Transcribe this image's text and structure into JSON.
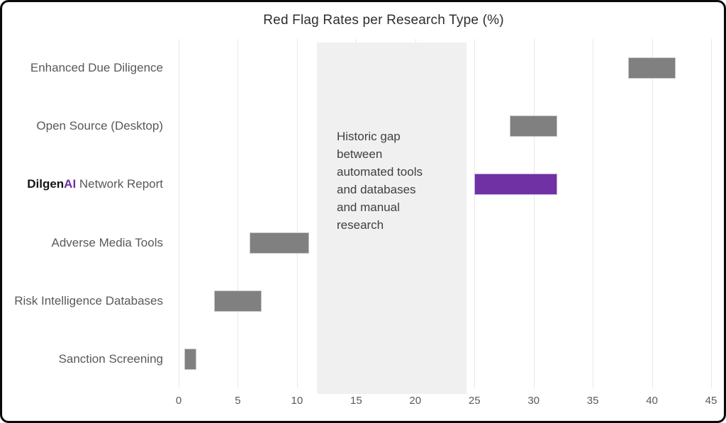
{
  "chart_data": {
    "type": "bar",
    "subtype": "horizontal-range-bars",
    "title": "Red Flag Rates per Research Type (%)",
    "xlabel": "",
    "ylabel": "",
    "xlim": [
      0,
      45
    ],
    "x_ticks": [
      0,
      5,
      10,
      15,
      20,
      25,
      30,
      35,
      40,
      45
    ],
    "grid": "vertical",
    "legend": "none",
    "rows": [
      {
        "label": "Enhanced Due Diligence",
        "start": 38,
        "end": 42,
        "highlight": false
      },
      {
        "label": "Open Source (Desktop)",
        "start": 28,
        "end": 32,
        "highlight": false
      },
      {
        "label": "DilgenAI Network Report",
        "start": 25,
        "end": 32,
        "highlight": true,
        "label_parts": [
          {
            "text": "Dilgen",
            "style": "brand-black"
          },
          {
            "text": "AI",
            "style": "brand-purple"
          },
          {
            "text": " Network Report",
            "style": "plain"
          }
        ]
      },
      {
        "label": "Adverse Media Tools",
        "start": 6,
        "end": 11,
        "highlight": false
      },
      {
        "label": "Risk Intelligence Databases",
        "start": 3,
        "end": 7,
        "highlight": false
      },
      {
        "label": "Sanction Screening",
        "start": 0.5,
        "end": 1.5,
        "highlight": false
      }
    ],
    "annotation": {
      "band_x0": 11.7,
      "band_x1": 24.3,
      "text": "Historic gap between automated tools and databases and manual research",
      "lines": [
        "Historic gap",
        "between",
        "automated tools",
        "and databases",
        "and manual",
        "research"
      ]
    },
    "colors": {
      "bar_gray": "#808080",
      "bar_gray_border": "#c6c6c6",
      "bar_highlight": "#6f31a3",
      "bar_highlight_border": "#c3a4de",
      "band": "#f0f0f0",
      "gridline": "#e7e7ea",
      "title_text": "#2e2e2e",
      "label_text": "#595959",
      "brand_black": "#151515",
      "brand_purple": "#7030a0",
      "annotation_text": "#3f3f3f",
      "frame_border": "#0a0a0a",
      "background": "#ffffff"
    }
  }
}
